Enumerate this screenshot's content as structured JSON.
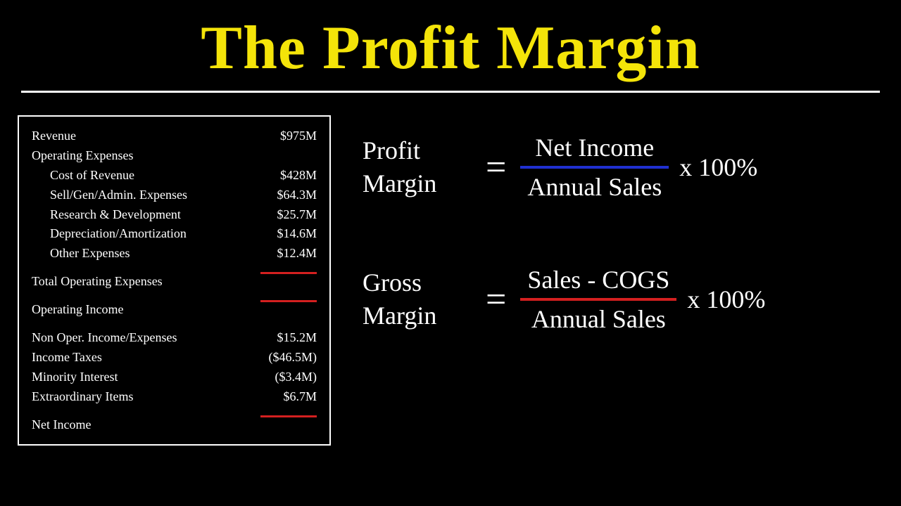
{
  "title": "The Profit Margin",
  "colors": {
    "background": "#000000",
    "title": "#f4e409",
    "text": "#ffffff",
    "redline": "#d42020",
    "blueline": "#2030d0"
  },
  "statement": {
    "revenue": {
      "label": "Revenue",
      "value": "$975M"
    },
    "operatingExpensesHeader": "Operating Expenses",
    "expenses": [
      {
        "label": "Cost of Revenue",
        "value": "$428M"
      },
      {
        "label": "Sell/Gen/Admin. Expenses",
        "value": "$64.3M"
      },
      {
        "label": "Research & Development",
        "value": "$25.7M"
      },
      {
        "label": "Depreciation/Amortization",
        "value": "$14.6M"
      },
      {
        "label": "Other Expenses",
        "value": "$12.4M"
      }
    ],
    "totalOpExp": {
      "label": "Total Operating Expenses"
    },
    "operatingIncome": {
      "label": "Operating Income"
    },
    "nonOperating": [
      {
        "label": "Non Oper. Income/Expenses",
        "value": "$15.2M"
      },
      {
        "label": "Income Taxes",
        "value": "($46.5M)"
      },
      {
        "label": "Minority Interest",
        "value": "($3.4M)"
      },
      {
        "label": "Extraordinary Items",
        "value": "$6.7M"
      }
    ],
    "netIncome": {
      "label": "Net Income"
    }
  },
  "formula1": {
    "labelLine1": "Profit",
    "labelLine2": "Margin",
    "numerator": "Net Income",
    "denominator": "Annual Sales",
    "suffix": "x 100%",
    "barColor": "blue"
  },
  "formula2": {
    "labelLine1": "Gross",
    "labelLine2": "Margin",
    "numerator": "Sales - COGS",
    "denominator": "Annual Sales",
    "suffix": "x 100%",
    "barColor": "red"
  }
}
